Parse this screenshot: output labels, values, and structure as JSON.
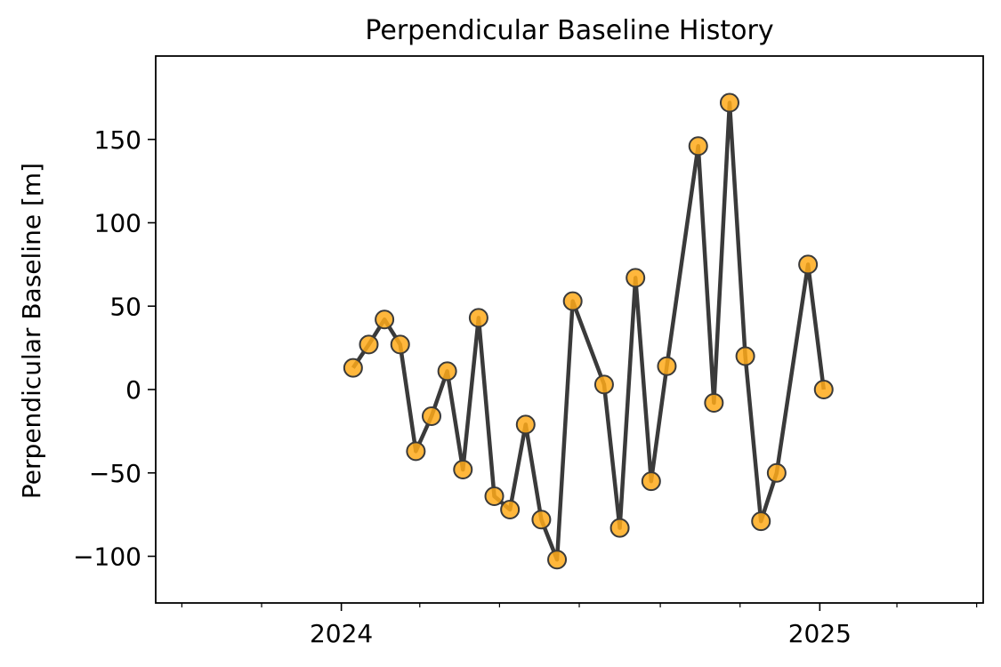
{
  "chart_data": {
    "type": "line",
    "title": "Perpendicular Baseline History",
    "xlabel": "",
    "ylabel": "Perpendicular Baseline [m]",
    "xlim": [
      "2023-08-12",
      "2025-05-06"
    ],
    "ylim": [
      -128,
      200
    ],
    "x_major_ticks": [
      {
        "date": "2024-01-01",
        "label": "2024"
      },
      {
        "date": "2025-01-01",
        "label": "2025"
      }
    ],
    "x_minor_ticks": [
      "2023-09-01",
      "2023-11-01",
      "2024-03-01",
      "2024-05-01",
      "2024-07-01",
      "2024-09-01",
      "2024-11-01",
      "2025-03-01",
      "2025-05-01"
    ],
    "y_ticks": [
      -100,
      -50,
      0,
      50,
      100,
      150
    ],
    "y_tick_labels": [
      "−100",
      "−50",
      "0",
      "50",
      "100",
      "150"
    ],
    "colors": {
      "line": "#3a3a3a",
      "marker_fill": "#ffaa1a",
      "marker_edge": "#3a3a3a"
    },
    "grid": false,
    "legend": "none",
    "series": [
      {
        "x": [
          "2024-01-10",
          "2024-01-22",
          "2024-02-03",
          "2024-02-15",
          "2024-02-27",
          "2024-03-10",
          "2024-03-22",
          "2024-04-03",
          "2024-04-15",
          "2024-04-27",
          "2024-05-09",
          "2024-05-21",
          "2024-06-02",
          "2024-06-14",
          "2024-06-26",
          "2024-07-20",
          "2024-08-01",
          "2024-08-13",
          "2024-08-25",
          "2024-09-06",
          "2024-09-30",
          "2024-10-12",
          "2024-10-24",
          "2024-11-05",
          "2024-11-17",
          "2024-11-29",
          "2024-12-23",
          "2025-01-04"
        ],
        "y": [
          13,
          27,
          42,
          27,
          -37,
          -16,
          11,
          -48,
          43,
          -64,
          -72,
          -21,
          -78,
          -102,
          53,
          3,
          -83,
          67,
          -55,
          14,
          146,
          -8,
          172,
          20,
          -79,
          -50,
          75,
          0
        ]
      }
    ]
  }
}
